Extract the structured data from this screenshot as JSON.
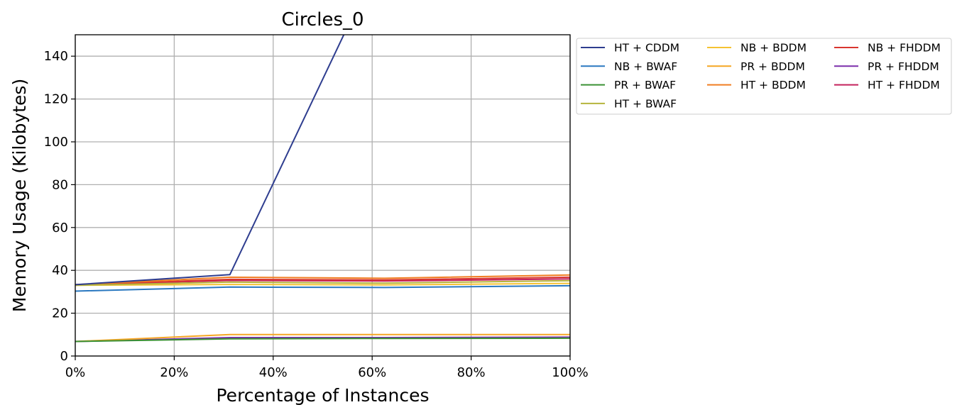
{
  "chart_data": {
    "type": "line",
    "title": "Circles_0",
    "xlabel": "Percentage of Instances",
    "ylabel": "Memory Usage (Kilobytes)",
    "xlim": [
      0,
      100
    ],
    "ylim": [
      0,
      150
    ],
    "x_tick_values": [
      0,
      20,
      40,
      60,
      80,
      100
    ],
    "x_tick_labels": [
      "0%",
      "20%",
      "40%",
      "60%",
      "80%",
      "100%"
    ],
    "y_ticks": [
      0,
      20,
      40,
      60,
      80,
      100,
      120,
      140
    ],
    "grid": true,
    "legend_position": "outside-right-top",
    "legend_columns": 3,
    "x": [
      0,
      31.25,
      62.5,
      100
    ],
    "series": [
      {
        "name": "HT + CDDM",
        "color": "#2e3d8f",
        "values": [
          33.3,
          38.0,
          190.0,
          null
        ]
      },
      {
        "name": "NB + BWAF",
        "color": "#2a78c0",
        "values": [
          30.3,
          32.2,
          32.0,
          32.8
        ]
      },
      {
        "name": "PR + BWAF",
        "color": "#3a9134",
        "values": [
          6.8,
          8.0,
          8.2,
          8.3
        ]
      },
      {
        "name": "HT + BWAF",
        "color": "#b5b43d",
        "values": [
          33.0,
          34.5,
          34.0,
          35.2
        ]
      },
      {
        "name": "NB + BDDM",
        "color": "#f5c232",
        "values": [
          33.0,
          33.4,
          33.2,
          33.9
        ]
      },
      {
        "name": "PR + BDDM",
        "color": "#f5a623",
        "values": [
          6.8,
          10.0,
          10.0,
          10.0
        ]
      },
      {
        "name": "HT + BDDM",
        "color": "#f07d22",
        "values": [
          33.3,
          36.8,
          36.3,
          37.8
        ]
      },
      {
        "name": "NB + FHDDM",
        "color": "#d9362f",
        "values": [
          33.2,
          35.8,
          35.5,
          36.8
        ]
      },
      {
        "name": "PR + FHDDM",
        "color": "#7b2fab",
        "values": [
          6.8,
          8.6,
          8.6,
          8.8
        ]
      },
      {
        "name": "HT + FHDDM",
        "color": "#c4225c",
        "values": [
          33.2,
          35.3,
          35.0,
          36.0
        ]
      }
    ]
  }
}
